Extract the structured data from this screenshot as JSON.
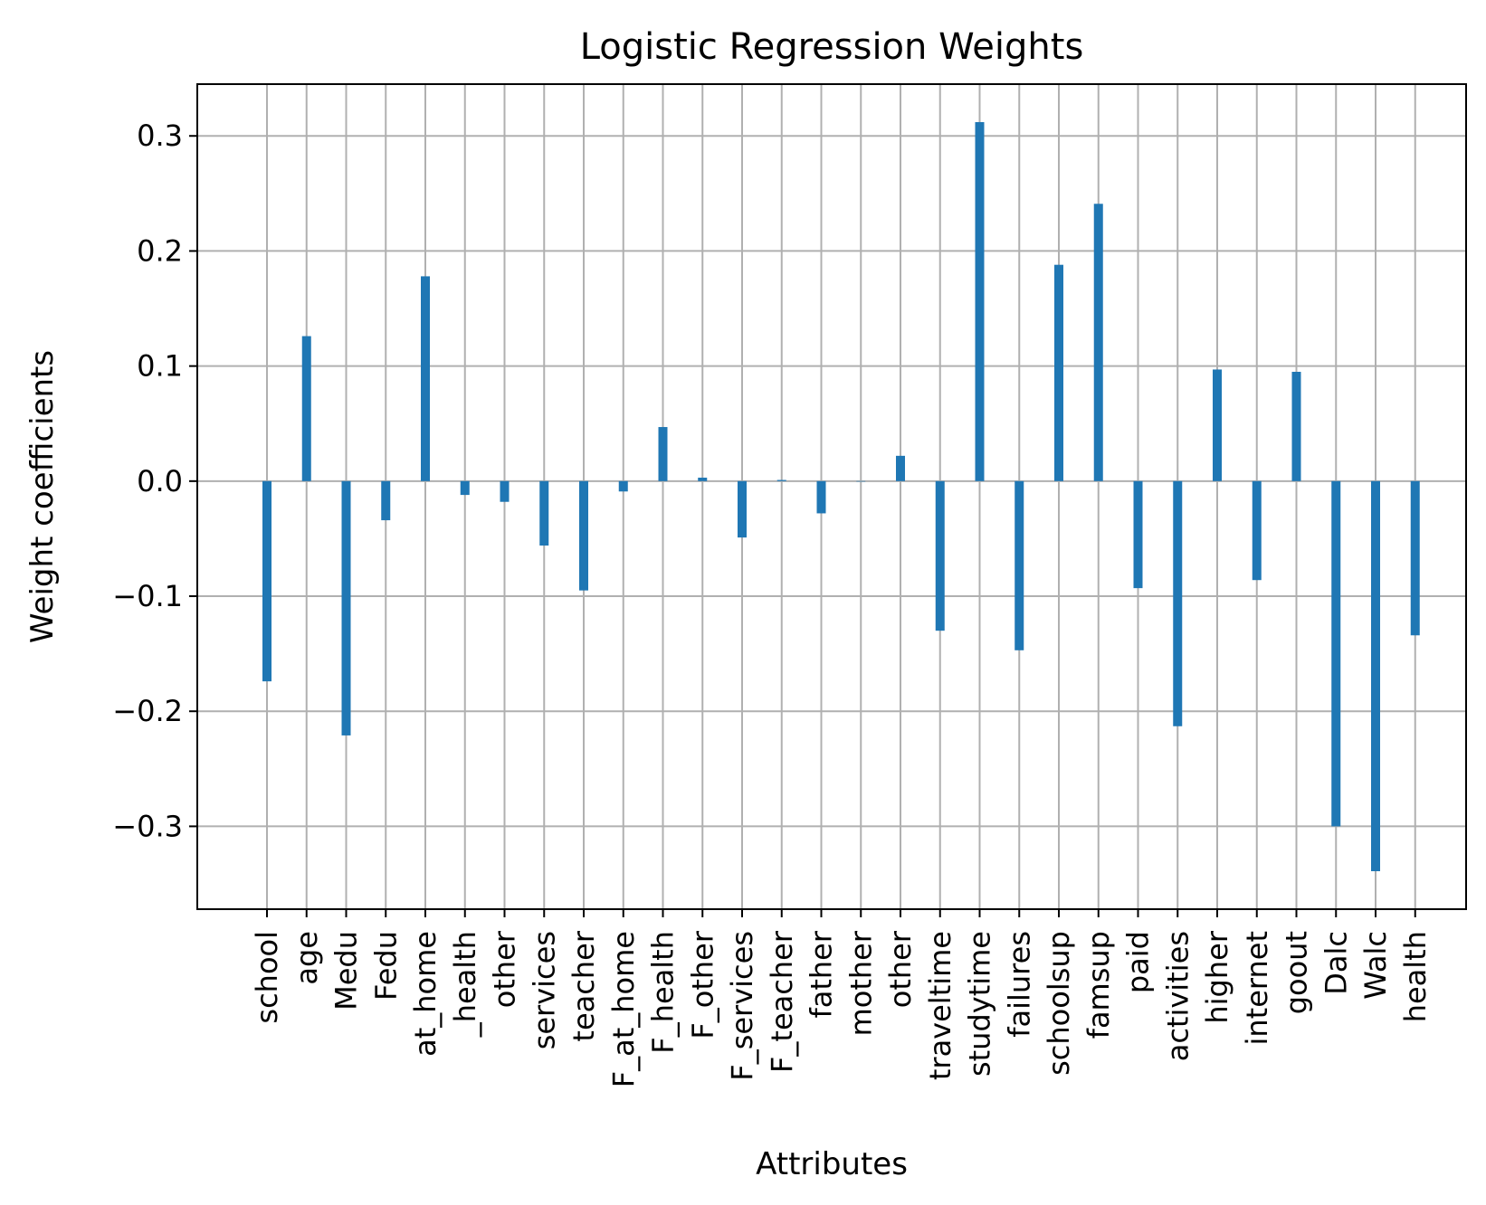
{
  "chart_data": {
    "type": "bar",
    "title": "Logistic Regression Weights",
    "xlabel": "Attributes",
    "ylabel": "Weight coefficients",
    "categories": [
      "school",
      "age",
      "Medu",
      "Fedu",
      "at_home",
      "_health",
      "other",
      "services",
      "teacher",
      "F_at_home",
      "F_health",
      "F_other",
      "F_services",
      "F_teacher",
      "father",
      "mother",
      "other",
      "traveltime",
      "studytime",
      "failures",
      "schoolsup",
      "famsup",
      "paid",
      "activities",
      "higher",
      "internet",
      "goout",
      "Dalc",
      "Walc",
      "health"
    ],
    "values": [
      -0.174,
      0.126,
      -0.221,
      -0.034,
      0.178,
      -0.012,
      -0.018,
      -0.056,
      -0.095,
      -0.009,
      0.047,
      0.003,
      -0.049,
      0.001,
      -0.028,
      0.0,
      0.022,
      -0.13,
      0.312,
      -0.147,
      0.188,
      0.241,
      -0.093,
      -0.213,
      0.097,
      -0.086,
      0.095,
      -0.3,
      -0.339,
      -0.134
    ],
    "ylim": [
      -0.372,
      0.345
    ],
    "yticks": [
      -0.3,
      -0.2,
      -0.1,
      0.0,
      0.1,
      0.2,
      0.3
    ],
    "ytick_labels": [
      "−0.3",
      "−0.2",
      "−0.1",
      "0.0",
      "0.1",
      "0.2",
      "0.3"
    ],
    "grid": true,
    "bar_color": "#1f77b4"
  }
}
